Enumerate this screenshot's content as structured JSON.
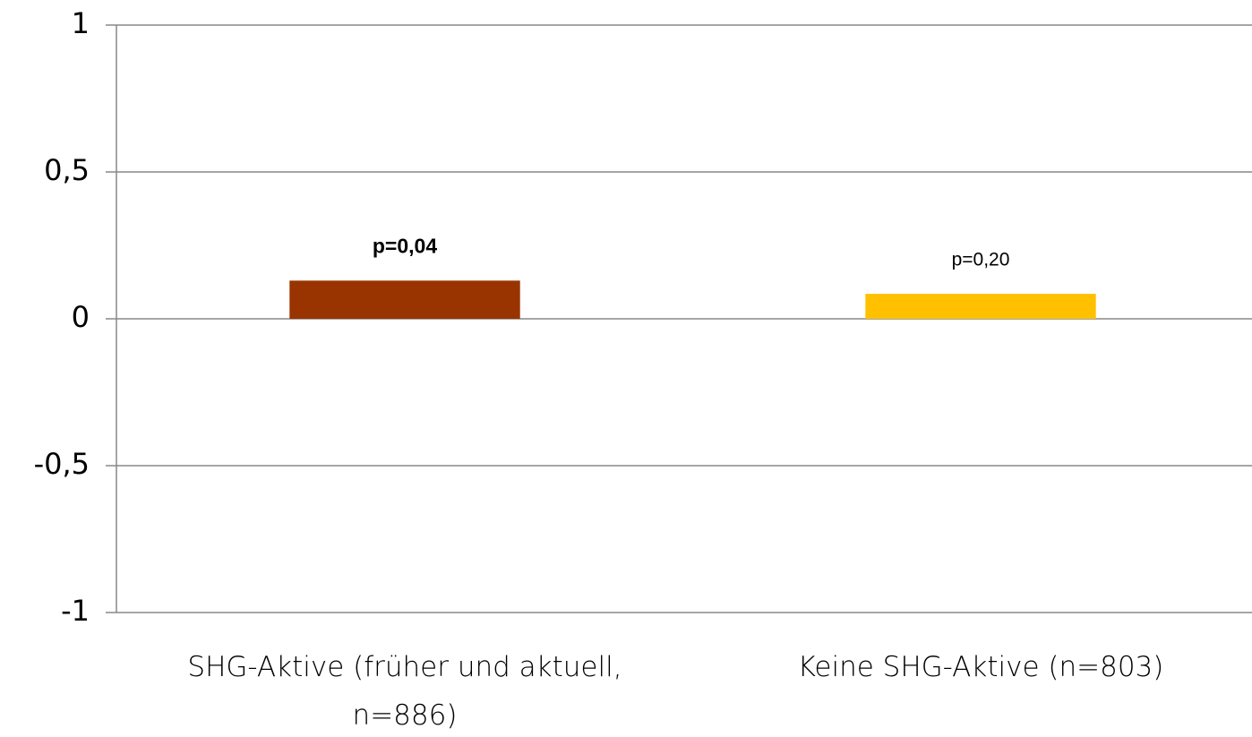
{
  "chart_data": {
    "type": "bar",
    "categories": [
      "SHG-Aktive (früher und aktuell, n=886)",
      "Keine SHG-Aktive (n=803)"
    ],
    "values": [
      0.13,
      0.085
    ],
    "colors": [
      "#993300",
      "#ffc000"
    ],
    "annotations": [
      {
        "text": "p=0,04",
        "bold": true
      },
      {
        "text": "p=0,20",
        "bold": false
      }
    ],
    "ylim": [
      -1,
      1
    ],
    "yticks": [
      -1,
      {
        "value": -0.5,
        "label": "-0,5"
      },
      0,
      {
        "value": 0.5,
        "label": "0,5"
      },
      1
    ],
    "grid": true
  }
}
